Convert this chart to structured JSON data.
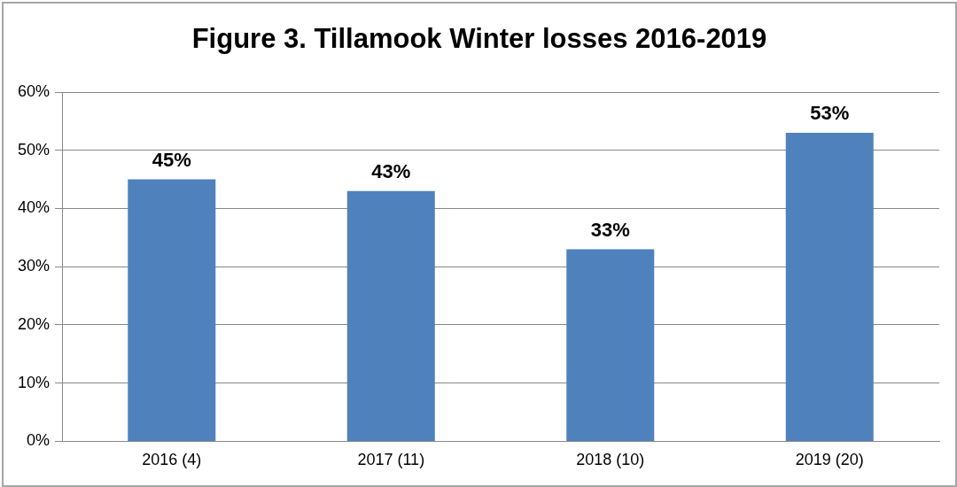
{
  "chart_data": {
    "type": "bar",
    "title": "Figure 3. Tillamook Winter losses 2016-2019",
    "categories": [
      "2016 (4)",
      "2017 (11)",
      "2018 (10)",
      "2019 (20)"
    ],
    "values": [
      45,
      43,
      33,
      53
    ],
    "value_labels": [
      "45%",
      "43%",
      "33%",
      "53%"
    ],
    "color": "#4f81bd",
    "ylim": [
      0,
      60
    ],
    "yticks": [
      {
        "value": 0,
        "label": "0%"
      },
      {
        "value": 10,
        "label": "10%"
      },
      {
        "value": 20,
        "label": "20%"
      },
      {
        "value": 30,
        "label": "30%"
      },
      {
        "value": 40,
        "label": "40%"
      },
      {
        "value": 50,
        "label": "50%"
      },
      {
        "value": 60,
        "label": "60%"
      }
    ],
    "grid": "y",
    "legend": false
  }
}
